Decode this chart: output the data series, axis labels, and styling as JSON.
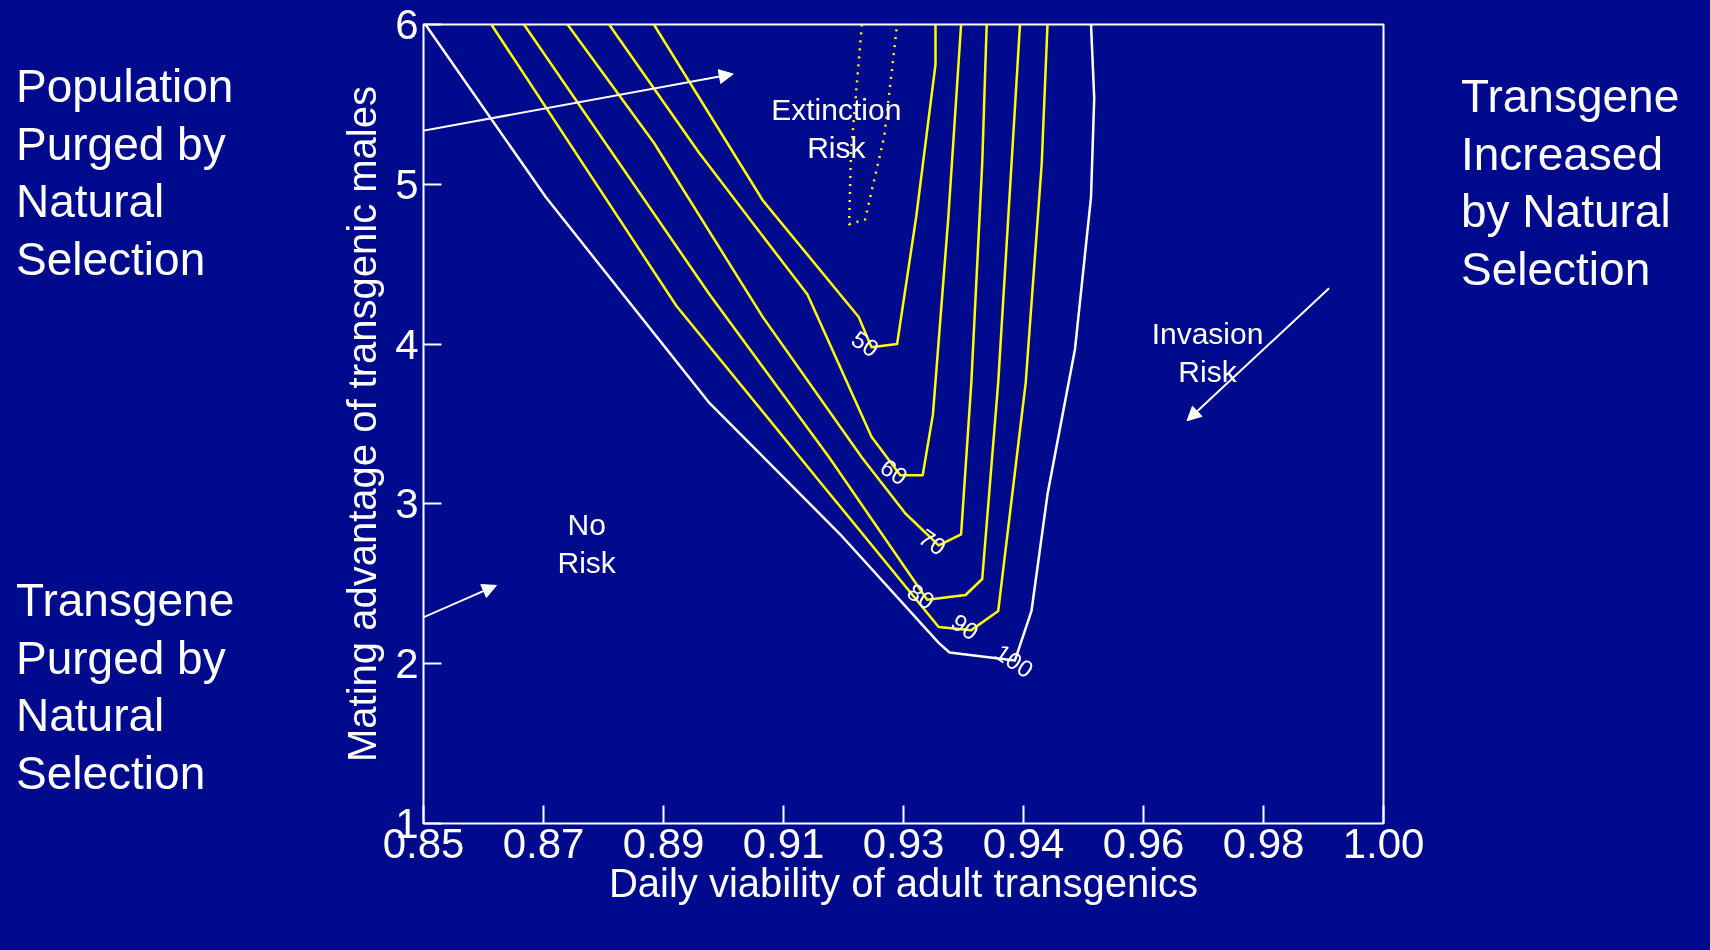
{
  "chart_data": {
    "type": "line",
    "xlabel": "Daily viability of adult transgenics",
    "ylabel": "Mating advantage of transgenic males",
    "xlim": [
      0.85,
      1.0
    ],
    "ylim": [
      1,
      6
    ],
    "xticks": [
      0.85,
      {
        "value": 0.86875,
        "label": "0.87"
      },
      {
        "value": 0.8875,
        "label": "0.89"
      },
      {
        "value": 0.90625,
        "label": "0.91"
      },
      {
        "value": 0.925,
        "label": "0.93"
      },
      {
        "value": 0.94375,
        "label": "0.94"
      },
      {
        "value": 0.9625,
        "label": "0.96"
      },
      {
        "value": 0.98125,
        "label": "0.98"
      },
      {
        "value": 1.0,
        "label": "1.00"
      }
    ],
    "yticks": [
      1,
      2,
      3,
      4,
      5,
      6
    ],
    "grid": false,
    "marker": "none",
    "series": [
      {
        "name": "50",
        "color": "#ffff00",
        "line_style": "solid",
        "x": [
          0.886,
          0.903,
          0.918,
          0.92,
          0.924,
          0.927,
          0.93,
          0.93
        ],
        "values": [
          6,
          4.9,
          4.17,
          3.98,
          4.0,
          4.8,
          5.75,
          6
        ]
      },
      {
        "name": "60",
        "color": "#ffff00",
        "line_style": "solid",
        "x": [
          0.879,
          0.893,
          0.91,
          0.92,
          0.9245,
          0.928,
          0.9296,
          0.932,
          0.934
        ],
        "values": [
          6,
          5.2,
          4.31,
          3.42,
          3.18,
          3.18,
          3.56,
          4.79,
          6
        ]
      },
      {
        "name": "70",
        "color": "#ffff00",
        "line_style": "solid",
        "x": [
          0.8725,
          0.886,
          0.903,
          0.9185,
          0.9253,
          0.9305,
          0.934,
          0.9356,
          0.9373,
          0.938
        ],
        "values": [
          6,
          5.26,
          4.17,
          3.29,
          2.94,
          2.74,
          2.81,
          3.76,
          5.13,
          6
        ]
      },
      {
        "name": "80",
        "color": "#ffff00",
        "line_style": "solid",
        "x": [
          0.8657,
          0.8947,
          0.9134,
          0.9287,
          0.9347,
          0.9373,
          0.9398,
          0.9424,
          0.9432
        ],
        "values": [
          6,
          4.31,
          3.29,
          2.4,
          2.43,
          2.53,
          3.76,
          5.47,
          6
        ]
      },
      {
        "name": "90",
        "color": "#ffff00",
        "line_style": "solid",
        "x": [
          0.8606,
          0.8895,
          0.9117,
          0.9305,
          0.9356,
          0.9398,
          0.9441,
          0.9466,
          0.9475
        ],
        "values": [
          6,
          4.24,
          3.15,
          2.23,
          2.21,
          2.33,
          3.76,
          5.13,
          6
        ]
      },
      {
        "name": "100",
        "color": "#ffffff",
        "line_style": "solid",
        "x": [
          0.8503,
          0.8691,
          0.8947,
          0.9151,
          0.9305,
          0.9322,
          0.9424,
          0.945,
          0.9475,
          0.9518,
          0.9543,
          0.9548,
          0.9543
        ],
        "values": [
          6,
          4.92,
          3.63,
          2.81,
          2.13,
          2.07,
          2.02,
          2.33,
          3.06,
          3.97,
          4.92,
          5.54,
          6
        ]
      },
      {
        "color": "#ffff00",
        "line_style": "dotted",
        "x": [
          0.9185,
          0.9168,
          0.9165,
          0.919,
          0.922,
          0.924
        ],
        "values": [
          6,
          5.2,
          4.75,
          4.78,
          5.3,
          6
        ]
      }
    ],
    "annotations": [
      "Population\nPurged by\nNatural\nSelection",
      "Transgene\nPurged by\nNatural\nSelection",
      "Transgene\nIncreased\nby Natural\nSelection",
      "Extinction\nRisk",
      "No\nRisk",
      "Invasion\nRisk"
    ]
  }
}
